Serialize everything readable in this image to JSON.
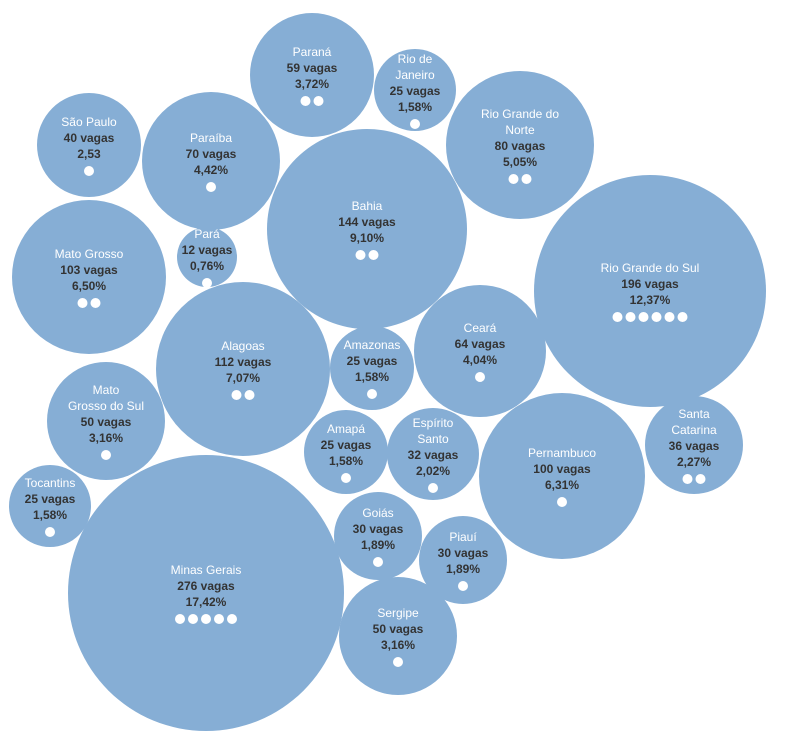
{
  "colors": {
    "bubble": "#86aed5",
    "label": "#ffffff",
    "value": "#333333",
    "dot": "#ffffff"
  },
  "chart_data": {
    "type": "bubble",
    "title": "",
    "items": [
      {
        "name": [
          "Paraná"
        ],
        "vagas": "59 vagas",
        "pct": "3,72%",
        "value": 59,
        "dots": 2
      },
      {
        "name": [
          "Rio de",
          "Janeiro"
        ],
        "vagas": "25 vagas",
        "pct": "1,58%",
        "value": 25,
        "dots": 1
      },
      {
        "name": [
          "São Paulo"
        ],
        "vagas": "40 vagas",
        "pct": "2,53",
        "value": 40,
        "dots": 1
      },
      {
        "name": [
          "Paraíba"
        ],
        "vagas": "70 vagas",
        "pct": "4,42%",
        "value": 70,
        "dots": 1
      },
      {
        "name": [
          "Rio Grande do",
          "Norte"
        ],
        "vagas": "80 vagas",
        "pct": "5,05%",
        "value": 80,
        "dots": 2
      },
      {
        "name": [
          "Bahia"
        ],
        "vagas": "144 vagas",
        "pct": "9,10%",
        "value": 144,
        "dots": 2
      },
      {
        "name": [
          "Pará"
        ],
        "vagas": "12 vagas",
        "pct": "0,76%",
        "value": 12,
        "dots": 1
      },
      {
        "name": [
          "Mato Grosso"
        ],
        "vagas": "103 vagas",
        "pct": "6,50%",
        "value": 103,
        "dots": 2
      },
      {
        "name": [
          "Rio Grande do Sul"
        ],
        "vagas": "196 vagas",
        "pct": "12,37%",
        "value": 196,
        "dots": 6
      },
      {
        "name": [
          "Alagoas"
        ],
        "vagas": "112 vagas",
        "pct": "7,07%",
        "value": 112,
        "dots": 2
      },
      {
        "name": [
          "Amazonas"
        ],
        "vagas": "25 vagas",
        "pct": "1,58%",
        "value": 25,
        "dots": 1
      },
      {
        "name": [
          "Ceará"
        ],
        "vagas": "64 vagas",
        "pct": "4,04%",
        "value": 64,
        "dots": 1
      },
      {
        "name": [
          "Mato",
          "Grosso do Sul"
        ],
        "vagas": "50 vagas",
        "pct": "3,16%",
        "value": 50,
        "dots": 1
      },
      {
        "name": [
          "Amapá"
        ],
        "vagas": "25 vagas",
        "pct": "1,58%",
        "value": 25,
        "dots": 1
      },
      {
        "name": [
          "Espírito",
          "Santo"
        ],
        "vagas": "32 vagas",
        "pct": "2,02%",
        "value": 32,
        "dots": 1
      },
      {
        "name": [
          "Santa",
          "Catarina"
        ],
        "vagas": "36 vagas",
        "pct": "2,27%",
        "value": 36,
        "dots": 2
      },
      {
        "name": [
          "Pernambuco"
        ],
        "vagas": "100 vagas",
        "pct": "6,31%",
        "value": 100,
        "dots": 1
      },
      {
        "name": [
          "Tocantins"
        ],
        "vagas": "25 vagas",
        "pct": "1,58%",
        "value": 25,
        "dots": 1
      },
      {
        "name": [
          "Goiás"
        ],
        "vagas": "30 vagas",
        "pct": "1,89%",
        "value": 30,
        "dots": 1
      },
      {
        "name": [
          "Minas Gerais"
        ],
        "vagas": "276 vagas",
        "pct": "17,42%",
        "value": 276,
        "dots": 5
      },
      {
        "name": [
          "Piauí"
        ],
        "vagas": "30 vagas",
        "pct": "1,89%",
        "value": 30,
        "dots": 1
      },
      {
        "name": [
          "Sergipe"
        ],
        "vagas": "50 vagas",
        "pct": "3,16%",
        "value": 50,
        "dots": 1
      }
    ]
  }
}
